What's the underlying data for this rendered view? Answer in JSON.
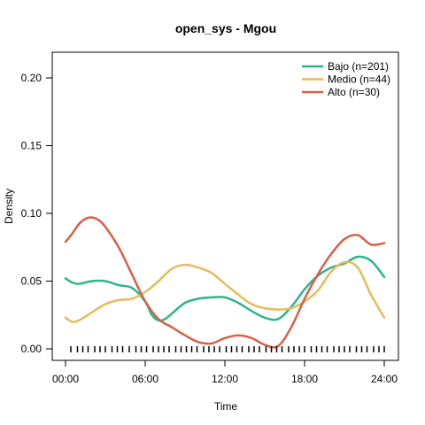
{
  "chart_data": {
    "type": "line",
    "title": "open_sys - Mgou",
    "xlabel": "Time",
    "ylabel": "Density",
    "xlim": [
      0,
      24
    ],
    "ylim": [
      0,
      0.2
    ],
    "x_ticks": [
      {
        "value": 0,
        "label": "00:00"
      },
      {
        "value": 6,
        "label": "06:00"
      },
      {
        "value": 12,
        "label": "12:00"
      },
      {
        "value": 18,
        "label": "18:00"
      },
      {
        "value": 24,
        "label": "24:00"
      }
    ],
    "y_ticks": [
      {
        "value": 0,
        "label": "0.00"
      },
      {
        "value": 0.05,
        "label": "0.05"
      },
      {
        "value": 0.1,
        "label": "0.10"
      },
      {
        "value": 0.15,
        "label": "0.15"
      },
      {
        "value": 0.2,
        "label": "0.20"
      }
    ],
    "grid": false,
    "legend_position": "top-right",
    "series": [
      {
        "name": "Bajo (n=201)",
        "color": "#2bb58c",
        "x": [
          0,
          0.5,
          1,
          2,
          3,
          4,
          5,
          6,
          6.5,
          7,
          7.5,
          8,
          9,
          10,
          11,
          12,
          13,
          14,
          15,
          16,
          17,
          18,
          19,
          20,
          21,
          22,
          23,
          24
        ],
        "y": [
          0.052,
          0.049,
          0.048,
          0.05,
          0.05,
          0.047,
          0.045,
          0.035,
          0.025,
          0.021,
          0.022,
          0.026,
          0.034,
          0.037,
          0.038,
          0.038,
          0.034,
          0.028,
          0.023,
          0.022,
          0.031,
          0.044,
          0.054,
          0.06,
          0.063,
          0.068,
          0.065,
          0.053
        ]
      },
      {
        "name": "Medio (n=44)",
        "color": "#e6bb5a",
        "x": [
          0,
          0.5,
          1,
          2,
          3,
          4,
          5,
          6,
          7,
          8,
          9,
          10,
          11,
          12,
          13,
          14,
          15,
          16,
          17,
          18,
          19,
          20,
          21,
          22,
          23,
          24
        ],
        "y": [
          0.023,
          0.02,
          0.021,
          0.027,
          0.033,
          0.036,
          0.037,
          0.042,
          0.05,
          0.059,
          0.062,
          0.06,
          0.056,
          0.048,
          0.04,
          0.033,
          0.03,
          0.029,
          0.03,
          0.035,
          0.043,
          0.057,
          0.064,
          0.06,
          0.04,
          0.023
        ]
      },
      {
        "name": "Alto (n=30)",
        "color": "#d95f47",
        "x": [
          0,
          0.5,
          1,
          1.5,
          2,
          2.5,
          3,
          4,
          5,
          6,
          7,
          8,
          9,
          10,
          11,
          12,
          13,
          14,
          15,
          16,
          17,
          18,
          19,
          20,
          21,
          22,
          23,
          24
        ],
        "y": [
          0.079,
          0.085,
          0.092,
          0.096,
          0.097,
          0.095,
          0.09,
          0.075,
          0.055,
          0.035,
          0.022,
          0.016,
          0.01,
          0.005,
          0.004,
          0.008,
          0.01,
          0.008,
          0.003,
          0.002,
          0.016,
          0.037,
          0.055,
          0.07,
          0.081,
          0.084,
          0.077,
          0.078
        ]
      }
    ],
    "rug": {
      "color": "#000000",
      "x": [
        0.4,
        0.9,
        1.3,
        1.7,
        2.2,
        2.6,
        3.0,
        3.5,
        3.9,
        4.3,
        4.8,
        5.3,
        5.7,
        6.1,
        6.6,
        7.0,
        7.4,
        7.8,
        8.3,
        8.7,
        9.1,
        9.5,
        9.9,
        10.4,
        10.8,
        11.2,
        11.6,
        12.1,
        12.5,
        12.9,
        13.3,
        13.8,
        14.2,
        14.6,
        15.1,
        15.5,
        15.9,
        16.3,
        16.8,
        17.2,
        17.6,
        18.0,
        18.5,
        18.9,
        19.3,
        19.7,
        20.2,
        20.6,
        21.0,
        21.4,
        21.9,
        22.3,
        22.7,
        23.2,
        23.6,
        24.0
      ]
    }
  }
}
